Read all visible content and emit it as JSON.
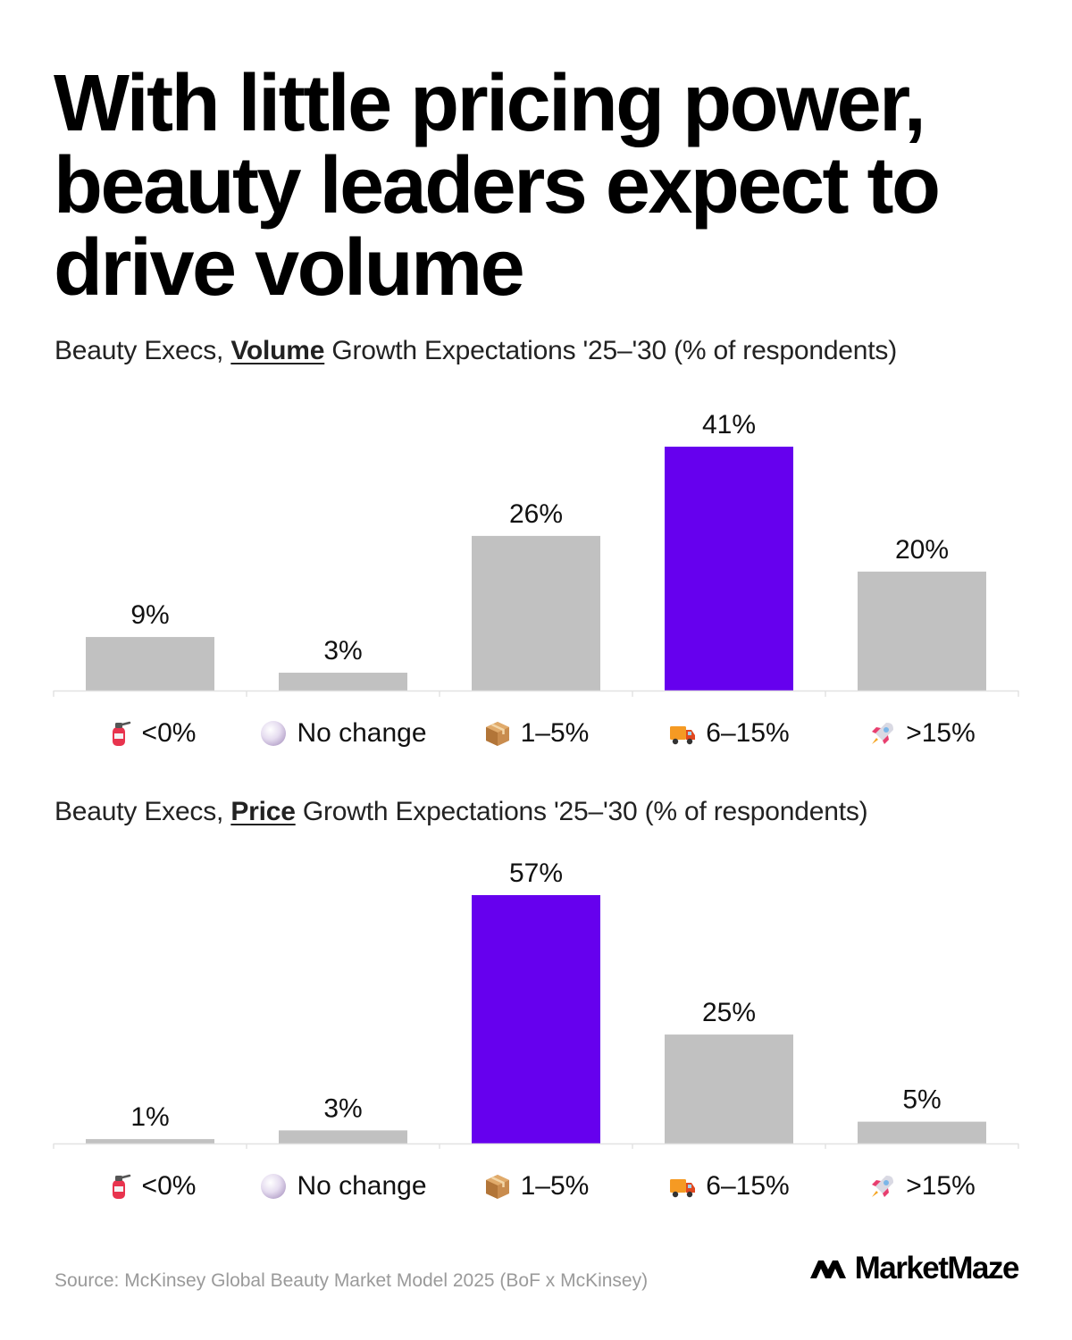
{
  "title_lines": [
    "With little pricing power,",
    "beauty leaders expect to",
    "drive volume"
  ],
  "colors": {
    "highlight": "#6600EE",
    "bar": "#C1C1C1",
    "axis": "#E2E2E2"
  },
  "categories": [
    {
      "label": "<0%",
      "icon": "fire-extinguisher-icon"
    },
    {
      "label": "No change",
      "icon": "pearl-icon"
    },
    {
      "label": "1–5%",
      "icon": "package-icon"
    },
    {
      "label": "6–15%",
      "icon": "delivery-truck-icon"
    },
    {
      "label": ">15%",
      "icon": "rocket-icon"
    }
  ],
  "chart_data": [
    {
      "type": "bar",
      "title_prefix": "Beauty Execs, ",
      "title_emphasis": "Volume",
      "title_suffix": " Growth Expectations '25–'30 (% of respondents)",
      "categories": [
        "<0%",
        "No change",
        "1–5%",
        "6–15%",
        ">15%"
      ],
      "values": [
        9,
        3,
        26,
        41,
        20
      ],
      "value_labels": [
        "9%",
        "3%",
        "26%",
        "41%",
        "20%"
      ],
      "highlight_index": 3,
      "ylim": [
        0,
        41
      ],
      "grid": false
    },
    {
      "type": "bar",
      "title_prefix": "Beauty Execs, ",
      "title_emphasis": "Price",
      "title_suffix": " Growth Expectations '25–'30 (% of respondents)",
      "categories": [
        "<0%",
        "No change",
        "1–5%",
        "6–15%",
        ">15%"
      ],
      "values": [
        1,
        3,
        57,
        25,
        5
      ],
      "value_labels": [
        "1%",
        "3%",
        "57%",
        "25%",
        "5%"
      ],
      "highlight_index": 2,
      "ylim": [
        0,
        57
      ],
      "grid": false
    }
  ],
  "footer": {
    "source": "Source: McKinsey Global Beauty Market Model 2025 (BoF x McKinsey)",
    "brand": "MarketMaze"
  }
}
